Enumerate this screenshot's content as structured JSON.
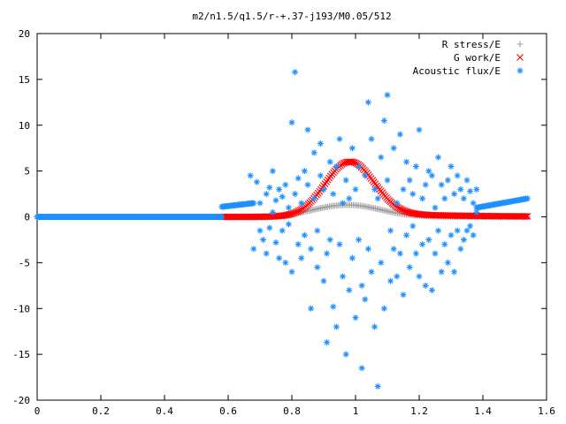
{
  "chart_data": {
    "type": "scatter",
    "title": "m2/n1.5/q1.5/r-+.37-j193/M0.05/512",
    "xlim": [
      0,
      1.6
    ],
    "ylim": [
      -20,
      20
    ],
    "x_ticks": [
      0,
      0.2,
      0.4,
      0.6,
      0.8,
      1,
      1.2,
      1.4,
      1.6
    ],
    "x_tick_labels": [
      "0",
      "0.2",
      "0.4",
      "0.6",
      "0.8",
      "1",
      "1.2",
      "1.4",
      "1.6"
    ],
    "y_ticks": [
      -20,
      -15,
      -10,
      -5,
      0,
      5,
      10,
      15,
      20
    ],
    "y_tick_labels": [
      "-20",
      "-15",
      "-10",
      "-5",
      "0",
      "5",
      "10",
      "15",
      "20"
    ],
    "grid": false,
    "legend_position": "top-right",
    "series": [
      {
        "name": "R stress/E",
        "marker": "plus",
        "color": "#a0a0a0",
        "profile": {
          "kind": "gaussian",
          "x_range": [
            0.58,
            1.54
          ],
          "baseline": 0,
          "center": 0.97,
          "sigma": 0.1,
          "peak": 1.3,
          "tail": 0.1,
          "npoints": 180
        }
      },
      {
        "name": "G work/E",
        "marker": "cross",
        "color": "#ff0000",
        "profile": {
          "kind": "gaussian",
          "x_range": [
            0.58,
            1.54
          ],
          "baseline": 0,
          "center": 0.98,
          "sigma": 0.075,
          "peak": 6.0,
          "tail": 0.5,
          "npoints": 220
        }
      },
      {
        "name": "Acoustic flux/E",
        "marker": "star",
        "color": "#1e90ff",
        "flat_band": {
          "x_range": [
            0,
            0.58
          ],
          "y": 0,
          "npoints": 260
        },
        "edge_bands": [
          {
            "x_range": [
              0.58,
              0.68
            ],
            "y": [
              1.1,
              1.5
            ],
            "npoints": 30
          },
          {
            "x_range": [
              1.38,
              1.54
            ],
            "y": [
              1.0,
              2.0
            ],
            "npoints": 40
          }
        ],
        "points": [
          [
            0.67,
            4.5
          ],
          [
            0.68,
            -3.5
          ],
          [
            0.69,
            3.8
          ],
          [
            0.7,
            1.5
          ],
          [
            0.7,
            -1.5
          ],
          [
            0.71,
            -2.5
          ],
          [
            0.72,
            2.5
          ],
          [
            0.72,
            -4.0
          ],
          [
            0.73,
            3.2
          ],
          [
            0.73,
            -1.2
          ],
          [
            0.74,
            0.5
          ],
          [
            0.74,
            5.0
          ],
          [
            0.75,
            -2.8
          ],
          [
            0.75,
            1.8
          ],
          [
            0.76,
            -4.5
          ],
          [
            0.76,
            3.0
          ],
          [
            0.77,
            -1.5
          ],
          [
            0.77,
            2.2
          ],
          [
            0.78,
            -5.0
          ],
          [
            0.78,
            3.5
          ],
          [
            0.79,
            -0.8
          ],
          [
            0.79,
            1.0
          ],
          [
            0.8,
            10.3
          ],
          [
            0.8,
            -6.0
          ],
          [
            0.81,
            15.8
          ],
          [
            0.81,
            2.5
          ],
          [
            0.82,
            -3.0
          ],
          [
            0.82,
            4.2
          ],
          [
            0.83,
            1.5
          ],
          [
            0.83,
            -4.5
          ],
          [
            0.84,
            5.0
          ],
          [
            0.84,
            -2.0
          ],
          [
            0.85,
            9.5
          ],
          [
            0.85,
            3.5
          ],
          [
            0.86,
            -10.0
          ],
          [
            0.86,
            -3.5
          ],
          [
            0.87,
            7.0
          ],
          [
            0.87,
            2.0
          ],
          [
            0.88,
            -5.5
          ],
          [
            0.88,
            -1.5
          ],
          [
            0.89,
            4.5
          ],
          [
            0.89,
            8.0
          ],
          [
            0.9,
            -7.0
          ],
          [
            0.9,
            3.0
          ],
          [
            0.91,
            -13.7
          ],
          [
            0.91,
            -4.0
          ],
          [
            0.92,
            6.0
          ],
          [
            0.92,
            -2.5
          ],
          [
            0.93,
            -9.8
          ],
          [
            0.93,
            2.5
          ],
          [
            0.94,
            -12.0
          ],
          [
            0.94,
            5.5
          ],
          [
            0.95,
            -3.0
          ],
          [
            0.95,
            8.5
          ],
          [
            0.96,
            -6.5
          ],
          [
            0.96,
            1.5
          ],
          [
            0.97,
            -15.0
          ],
          [
            0.97,
            4.0
          ],
          [
            0.98,
            -8.0
          ],
          [
            0.98,
            2.0
          ],
          [
            0.99,
            7.5
          ],
          [
            0.99,
            -4.5
          ],
          [
            1.0,
            -11.0
          ],
          [
            1.0,
            3.0
          ],
          [
            1.01,
            5.5
          ],
          [
            1.01,
            -2.5
          ],
          [
            1.02,
            -16.5
          ],
          [
            1.02,
            -7.5
          ],
          [
            1.03,
            4.5
          ],
          [
            1.03,
            -9.0
          ],
          [
            1.04,
            12.5
          ],
          [
            1.04,
            -3.5
          ],
          [
            1.05,
            8.5
          ],
          [
            1.05,
            -6.0
          ],
          [
            1.06,
            3.0
          ],
          [
            1.06,
            -12.0
          ],
          [
            1.07,
            -18.5
          ],
          [
            1.07,
            2.0
          ],
          [
            1.08,
            6.5
          ],
          [
            1.08,
            -5.0
          ],
          [
            1.09,
            10.5
          ],
          [
            1.09,
            -10.0
          ],
          [
            1.1,
            13.3
          ],
          [
            1.1,
            4.0
          ],
          [
            1.11,
            -1.5
          ],
          [
            1.11,
            -7.0
          ],
          [
            1.12,
            7.5
          ],
          [
            1.12,
            -3.5
          ],
          [
            1.13,
            1.5
          ],
          [
            1.13,
            -6.5
          ],
          [
            1.14,
            9.0
          ],
          [
            1.14,
            -4.0
          ],
          [
            1.15,
            3.0
          ],
          [
            1.15,
            -8.5
          ],
          [
            1.16,
            6.0
          ],
          [
            1.16,
            -2.0
          ],
          [
            1.17,
            4.0
          ],
          [
            1.17,
            -5.5
          ],
          [
            1.18,
            -1.0
          ],
          [
            1.18,
            2.5
          ],
          [
            1.19,
            5.5
          ],
          [
            1.19,
            -4.0
          ],
          [
            1.2,
            9.5
          ],
          [
            1.2,
            -6.5
          ],
          [
            1.21,
            2.0
          ],
          [
            1.21,
            -3.0
          ],
          [
            1.22,
            3.5
          ],
          [
            1.22,
            -7.5
          ],
          [
            1.23,
            5.0
          ],
          [
            1.23,
            -2.5
          ],
          [
            1.24,
            4.5
          ],
          [
            1.24,
            -8.0
          ],
          [
            1.25,
            1.0
          ],
          [
            1.25,
            -4.0
          ],
          [
            1.26,
            6.5
          ],
          [
            1.26,
            -1.5
          ],
          [
            1.27,
            3.5
          ],
          [
            1.27,
            -6.0
          ],
          [
            1.28,
            2.0
          ],
          [
            1.28,
            -3.0
          ],
          [
            1.29,
            4.0
          ],
          [
            1.29,
            -5.0
          ],
          [
            1.3,
            5.5
          ],
          [
            1.3,
            -2.0
          ],
          [
            1.31,
            2.5
          ],
          [
            1.31,
            -6.0
          ],
          [
            1.32,
            4.5
          ],
          [
            1.32,
            -1.5
          ],
          [
            1.33,
            3.0
          ],
          [
            1.33,
            -3.5
          ],
          [
            1.34,
            2.0
          ],
          [
            1.34,
            -2.5
          ],
          [
            1.35,
            4.0
          ],
          [
            1.35,
            -1.5
          ],
          [
            1.36,
            2.8
          ],
          [
            1.36,
            -1.0
          ],
          [
            1.37,
            1.5
          ],
          [
            1.37,
            -2.0
          ],
          [
            1.38,
            3.0
          ],
          [
            1.38,
            0.5
          ]
        ]
      }
    ]
  }
}
